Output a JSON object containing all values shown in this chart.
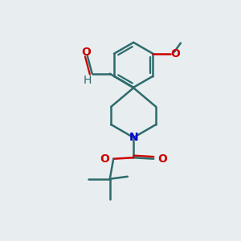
{
  "bg_color": "#e8edf0",
  "bond_color": "#2d6b6b",
  "oxygen_color": "#cc0000",
  "nitrogen_color": "#0000cc",
  "lw": 1.8,
  "figsize": [
    3.0,
    3.0
  ],
  "dpi": 100,
  "xlim": [
    0,
    10
  ],
  "ylim": [
    0,
    10
  ]
}
